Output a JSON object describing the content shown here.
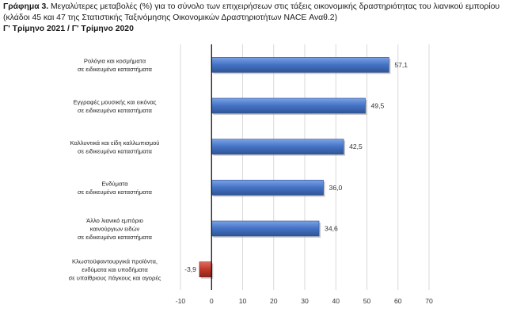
{
  "header": {
    "lead": "Γράφημα 3.",
    "title": " Μεγαλύτερες μεταβολές (%) για το σύνολο των επιχειρήσεων στις τάξεις οικονομικής δραστηριότητας του λιανικού εμπορίου (κλάδοι 45 και 47 της Στατιστικής Ταξινόμησης Οικονομικών Δραστηριοτήτων NACE Αναθ.2)",
    "subtitle": "Γ' Τρίμηνο 2021 / Γ' Τρίμηνο 2020"
  },
  "chart_data": {
    "type": "bar",
    "orientation": "horizontal",
    "categories": [
      [
        "Ρολόγια και κοσμήματα",
        "σε ειδικευμένα καταστήματα"
      ],
      [
        "Εγγραφές μουσικής και εικόνας",
        "σε ειδικευμένα καταστήματα"
      ],
      [
        "Καλλυντικά και είδη καλλωπισμού",
        "σε ειδικευμένα καταστήματα"
      ],
      [
        "Ενδύματα",
        "σε ειδικευμένα καταστήματα"
      ],
      [
        "Άλλο λιανικό εμπόριο",
        "καινούργιων ειδών",
        "σε ειδικευμένα καταστήματα"
      ],
      [
        "Κλωστοϋφαντουργικά προϊόντα,",
        "ενδύματα και υποδήματα",
        "σε υπαίθριους πάγκους και αγορές"
      ]
    ],
    "values": [
      57.1,
      49.5,
      42.5,
      36.0,
      34.6,
      -3.9
    ],
    "value_labels": [
      "57,1",
      "49,5",
      "42,5",
      "36,0",
      "34,6",
      "-3,9"
    ],
    "xlim": [
      -10,
      70
    ],
    "xticks": [
      -10,
      0,
      10,
      20,
      30,
      40,
      50,
      60,
      70
    ],
    "grid": true,
    "colors": {
      "positive": "#4472c4",
      "positive_light": "#5b8ad6",
      "negative": "#c0392b",
      "negative_light": "#d9534f",
      "grid": "#d9d9d9",
      "zero_axis": "#000000"
    }
  }
}
